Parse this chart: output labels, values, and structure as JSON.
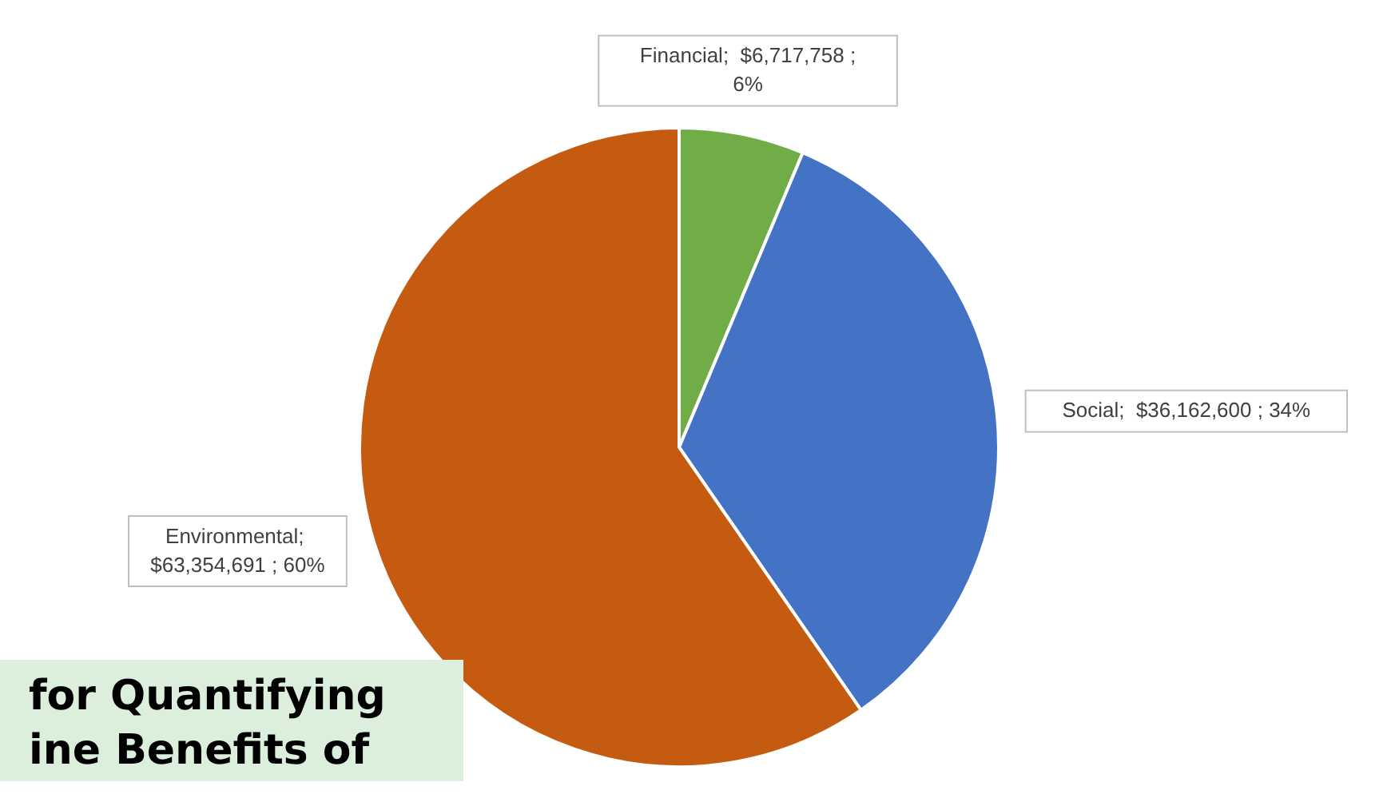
{
  "chart_data": {
    "type": "pie",
    "categories": [
      "Financial",
      "Social",
      "Environmental"
    ],
    "values": [
      6717758,
      36162600,
      63354691
    ],
    "colors": [
      "#70ad47",
      "#4472c4",
      "#c55a11"
    ],
    "value_labels": [
      ";  $6,717,758 ; 6%",
      ";  $36,162,600 ; 34%",
      ";  $63,354,691 ; 60%"
    ],
    "annotations": [
      "for Quantifying",
      "ine Benefits of"
    ]
  }
}
